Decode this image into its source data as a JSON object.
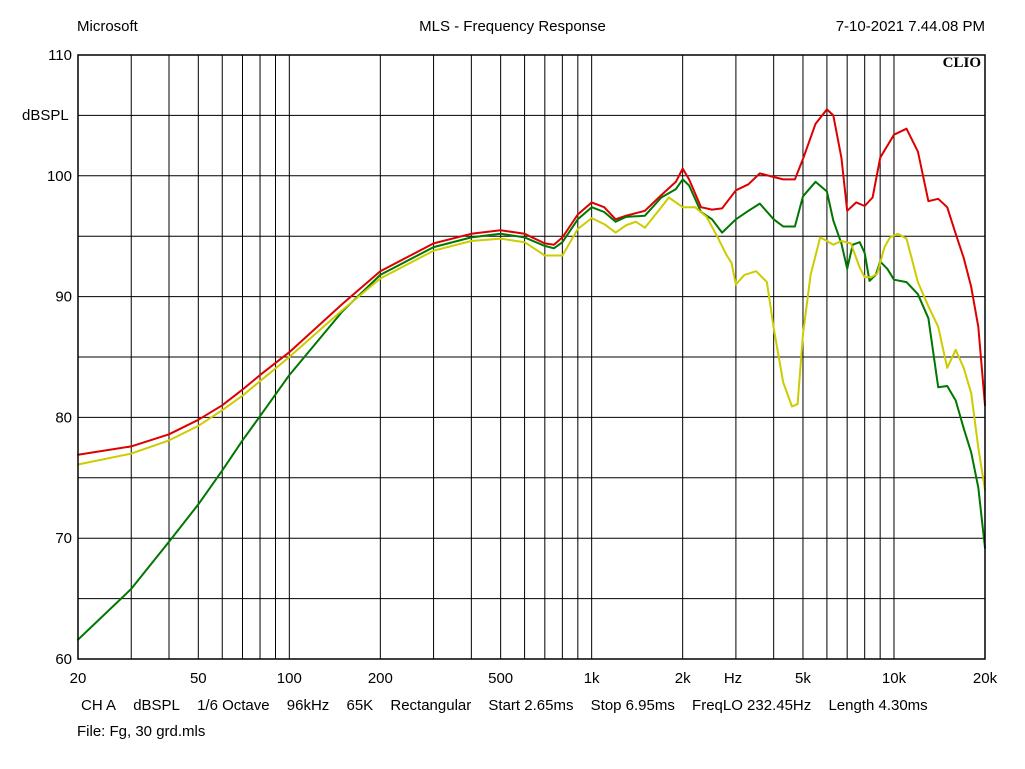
{
  "header": {
    "left": "Microsoft",
    "title": "MLS - Frequency Response",
    "datetime": "7-10-2021 7.44.08 PM"
  },
  "brand": "CLIO",
  "footer": {
    "channel": "CH A",
    "unit": "dBSPL",
    "smoothing": "1/6 Octave",
    "sample_rate": "96kHz",
    "mls_size": "65K",
    "window": "Rectangular",
    "start": "Start 2.65ms",
    "stop": "Stop 6.95ms",
    "freqlo": "FreqLO 232.45Hz",
    "length": "Length 4.30ms",
    "file": "File: Fg, 30 grd.mls"
  },
  "chart_data": {
    "type": "line",
    "title": "MLS - Frequency Response",
    "xlabel": "Hz",
    "ylabel": "dBSPL",
    "x_scale": "log",
    "xlim": [
      20,
      20000
    ],
    "ylim": [
      60,
      110
    ],
    "grid": true,
    "x_tick_labels": [
      {
        "v": 20,
        "t": "20"
      },
      {
        "v": 50,
        "t": "50"
      },
      {
        "v": 100,
        "t": "100"
      },
      {
        "v": 200,
        "t": "200"
      },
      {
        "v": 500,
        "t": "500"
      },
      {
        "v": 1000,
        "t": "1k"
      },
      {
        "v": 2000,
        "t": "2k"
      },
      {
        "v": 5000,
        "t": "5k"
      },
      {
        "v": 10000,
        "t": "10k"
      },
      {
        "v": 20000,
        "t": "20k"
      }
    ],
    "y_tick_labels": [
      {
        "v": 60,
        "t": "60"
      },
      {
        "v": 70,
        "t": "70"
      },
      {
        "v": 80,
        "t": "80"
      },
      {
        "v": 90,
        "t": "90"
      },
      {
        "v": 100,
        "t": "100"
      },
      {
        "v": 110,
        "t": "110"
      }
    ],
    "series": [
      {
        "color": "#dd0000",
        "points": [
          [
            20,
            76.9
          ],
          [
            30,
            77.6
          ],
          [
            40,
            78.6
          ],
          [
            50,
            79.8
          ],
          [
            60,
            81.0
          ],
          [
            70,
            82.3
          ],
          [
            80,
            83.5
          ],
          [
            100,
            85.4
          ],
          [
            150,
            89.4
          ],
          [
            200,
            92.1
          ],
          [
            300,
            94.4
          ],
          [
            400,
            95.2
          ],
          [
            500,
            95.5
          ],
          [
            600,
            95.2
          ],
          [
            700,
            94.4
          ],
          [
            750,
            94.3
          ],
          [
            800,
            94.9
          ],
          [
            900,
            96.8
          ],
          [
            1000,
            97.8
          ],
          [
            1100,
            97.4
          ],
          [
            1200,
            96.4
          ],
          [
            1300,
            96.7
          ],
          [
            1500,
            97.1
          ],
          [
            1700,
            98.4
          ],
          [
            1900,
            99.5
          ],
          [
            2000,
            100.6
          ],
          [
            2100,
            99.7
          ],
          [
            2300,
            97.4
          ],
          [
            2500,
            97.2
          ],
          [
            2700,
            97.3
          ],
          [
            3000,
            98.8
          ],
          [
            3300,
            99.3
          ],
          [
            3600,
            100.2
          ],
          [
            4000,
            99.9
          ],
          [
            4300,
            99.7
          ],
          [
            4700,
            99.7
          ],
          [
            5000,
            101.4
          ],
          [
            5500,
            104.3
          ],
          [
            6000,
            105.5
          ],
          [
            6300,
            105.0
          ],
          [
            6700,
            101.5
          ],
          [
            7000,
            97.1
          ],
          [
            7500,
            97.8
          ],
          [
            8000,
            97.5
          ],
          [
            8500,
            98.2
          ],
          [
            9000,
            101.5
          ],
          [
            10000,
            103.4
          ],
          [
            11000,
            103.9
          ],
          [
            12000,
            102.0
          ],
          [
            13000,
            97.9
          ],
          [
            14000,
            98.1
          ],
          [
            15000,
            97.4
          ],
          [
            16000,
            95.2
          ],
          [
            17000,
            93.2
          ],
          [
            18000,
            90.8
          ],
          [
            19000,
            87.5
          ],
          [
            20000,
            81.0
          ]
        ]
      },
      {
        "color": "#007700",
        "points": [
          [
            20,
            61.6
          ],
          [
            30,
            65.8
          ],
          [
            40,
            69.7
          ],
          [
            50,
            72.8
          ],
          [
            60,
            75.6
          ],
          [
            70,
            78.1
          ],
          [
            80,
            80.1
          ],
          [
            100,
            83.5
          ],
          [
            150,
            88.8
          ],
          [
            200,
            91.8
          ],
          [
            300,
            94.1
          ],
          [
            400,
            94.9
          ],
          [
            500,
            95.2
          ],
          [
            600,
            94.9
          ],
          [
            700,
            94.2
          ],
          [
            750,
            94.0
          ],
          [
            800,
            94.5
          ],
          [
            900,
            96.4
          ],
          [
            1000,
            97.4
          ],
          [
            1100,
            97.0
          ],
          [
            1200,
            96.2
          ],
          [
            1300,
            96.6
          ],
          [
            1500,
            96.7
          ],
          [
            1700,
            98.2
          ],
          [
            1900,
            98.9
          ],
          [
            2000,
            99.7
          ],
          [
            2100,
            99.2
          ],
          [
            2300,
            97.0
          ],
          [
            2500,
            96.4
          ],
          [
            2700,
            95.3
          ],
          [
            3000,
            96.4
          ],
          [
            3300,
            97.1
          ],
          [
            3600,
            97.7
          ],
          [
            4000,
            96.4
          ],
          [
            4300,
            95.8
          ],
          [
            4700,
            95.8
          ],
          [
            5000,
            98.3
          ],
          [
            5500,
            99.5
          ],
          [
            6000,
            98.7
          ],
          [
            6300,
            96.3
          ],
          [
            6700,
            94.4
          ],
          [
            7000,
            92.3
          ],
          [
            7300,
            94.3
          ],
          [
            7700,
            94.5
          ],
          [
            8000,
            93.6
          ],
          [
            8300,
            91.3
          ],
          [
            8700,
            91.8
          ],
          [
            9000,
            92.9
          ],
          [
            9500,
            92.3
          ],
          [
            10000,
            91.4
          ],
          [
            11000,
            91.2
          ],
          [
            12000,
            90.2
          ],
          [
            13000,
            88.2
          ],
          [
            14000,
            82.5
          ],
          [
            15000,
            82.6
          ],
          [
            16000,
            81.4
          ],
          [
            17000,
            79.1
          ],
          [
            18000,
            77.1
          ],
          [
            19000,
            74.2
          ],
          [
            20000,
            69.2
          ]
        ]
      },
      {
        "color": "#cccc00",
        "points": [
          [
            20,
            76.1
          ],
          [
            30,
            77.0
          ],
          [
            40,
            78.1
          ],
          [
            50,
            79.3
          ],
          [
            60,
            80.6
          ],
          [
            70,
            81.8
          ],
          [
            80,
            83.0
          ],
          [
            100,
            85.0
          ],
          [
            150,
            88.9
          ],
          [
            200,
            91.5
          ],
          [
            300,
            93.8
          ],
          [
            400,
            94.6
          ],
          [
            500,
            94.8
          ],
          [
            600,
            94.5
          ],
          [
            700,
            93.4
          ],
          [
            800,
            93.4
          ],
          [
            900,
            95.6
          ],
          [
            1000,
            96.5
          ],
          [
            1100,
            96.0
          ],
          [
            1200,
            95.3
          ],
          [
            1300,
            95.9
          ],
          [
            1400,
            96.2
          ],
          [
            1500,
            95.7
          ],
          [
            1700,
            97.4
          ],
          [
            1800,
            98.2
          ],
          [
            1900,
            97.8
          ],
          [
            2000,
            97.4
          ],
          [
            2200,
            97.4
          ],
          [
            2400,
            96.6
          ],
          [
            2600,
            95.0
          ],
          [
            2800,
            93.4
          ],
          [
            2900,
            92.8
          ],
          [
            3000,
            91.0
          ],
          [
            3200,
            91.8
          ],
          [
            3500,
            92.1
          ],
          [
            3800,
            91.2
          ],
          [
            4000,
            87.4
          ],
          [
            4300,
            82.9
          ],
          [
            4600,
            80.9
          ],
          [
            4800,
            81.1
          ],
          [
            5000,
            86.9
          ],
          [
            5300,
            91.8
          ],
          [
            5700,
            94.9
          ],
          [
            6000,
            94.6
          ],
          [
            6300,
            94.3
          ],
          [
            6700,
            94.6
          ],
          [
            7200,
            94.4
          ],
          [
            7700,
            92.4
          ],
          [
            8000,
            91.6
          ],
          [
            8400,
            91.6
          ],
          [
            8800,
            91.9
          ],
          [
            9300,
            94.1
          ],
          [
            9700,
            94.9
          ],
          [
            10300,
            95.2
          ],
          [
            11000,
            94.8
          ],
          [
            12000,
            91.2
          ],
          [
            13000,
            89.2
          ],
          [
            14000,
            87.5
          ],
          [
            15000,
            84.1
          ],
          [
            16000,
            85.6
          ],
          [
            17000,
            84.1
          ],
          [
            18000,
            82.0
          ],
          [
            19000,
            77.5
          ],
          [
            20000,
            74.0
          ]
        ]
      }
    ]
  }
}
